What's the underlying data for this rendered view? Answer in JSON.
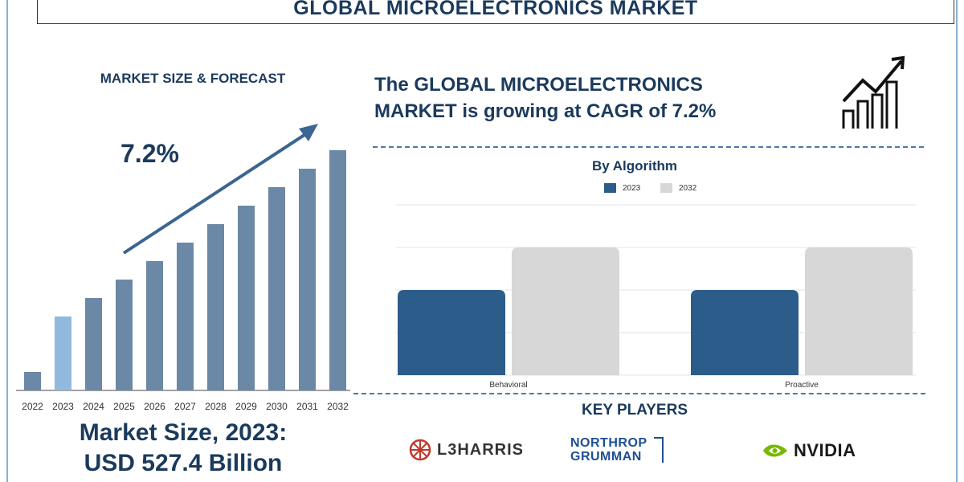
{
  "title": "GLOBAL MICROELECTRONICS MARKET",
  "left_panel": {
    "subtitle": "MARKET SIZE & FORECAST",
    "cagr_label": "7.2%",
    "market_size_line1": "Market Size, 2023:",
    "market_size_line2": "USD 527.4 Billion"
  },
  "right_panel": {
    "headline_line1": "The GLOBAL MICROELECTRONICS",
    "headline_line2": "MARKET is growing at CAGR of 7.2%",
    "chart_title": "By Algorithm",
    "key_players_title": "KEY PLAYERS",
    "players": [
      "L3HARRIS",
      "NORTHROP",
      "GRUMMAN",
      "NVIDIA"
    ]
  },
  "colors": {
    "primary": "#1b3a5c",
    "bar_left": "#6b88a6",
    "bar_left_highlight": "#91b9dd",
    "series_2023": "#2c5c8a",
    "series_2032": "#d7d7d7",
    "dash": "#4a79a8"
  },
  "icons": [
    "growth-chart-icon",
    "trend-arrow-icon",
    "l3harris-logo-icon",
    "nvidia-logo-icon"
  ],
  "chart_data": [
    {
      "type": "bar",
      "title": "MARKET SIZE & FORECAST",
      "categories": [
        "2022",
        "2023",
        "2024",
        "2025",
        "2026",
        "2027",
        "2028",
        "2029",
        "2030",
        "2031",
        "2032"
      ],
      "values": [
        1,
        4,
        5,
        6,
        7,
        8,
        9,
        10,
        11,
        12,
        13
      ],
      "highlight_index": 1,
      "annotation": "7.2%",
      "ylim": [
        0,
        14
      ],
      "grid": false
    },
    {
      "type": "bar",
      "title": "By Algorithm",
      "categories": [
        "Behavioral",
        "Proactive"
      ],
      "series": [
        {
          "name": "2023",
          "values": [
            2,
            2
          ]
        },
        {
          "name": "2032",
          "values": [
            3,
            3
          ]
        }
      ],
      "ylim": [
        0,
        4
      ],
      "grid": true,
      "legend": "top-center"
    }
  ]
}
